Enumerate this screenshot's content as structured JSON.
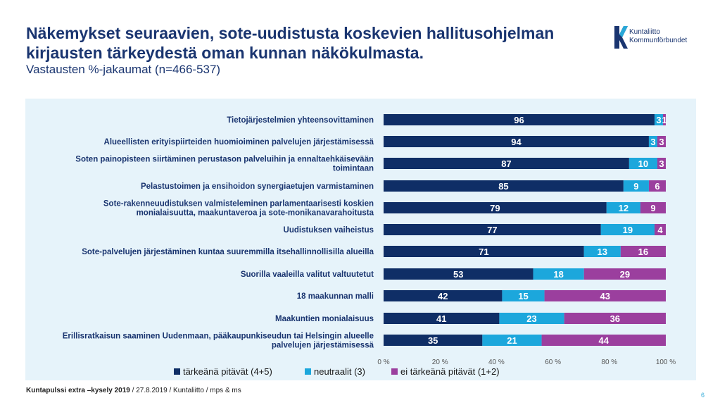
{
  "header": {
    "title": "Näkemykset seuraavien, sote-uudistusta koskevien hallitusohjelman kirjausten tärkeydestä oman kunnan näkökulmasta.",
    "subtitle": "Vastausten %-jakaumat (n=466-537)"
  },
  "logo": {
    "line1": "Kuntaliitto",
    "line2": "Kommunförbundet"
  },
  "footer": {
    "source_bold": "Kuntapulssi extra –kysely 2019",
    "source_rest": " / 27.8.2019 / Kuntaliitto / mps & ms",
    "page": "6"
  },
  "chart_data": {
    "type": "bar",
    "orientation": "horizontal",
    "stacked": true,
    "categories": [
      [
        "Tietojärjestelmien yhteensovittaminen"
      ],
      [
        "Alueellisten erityispiirteiden huomioiminen palvelujen järjestämisessä"
      ],
      [
        "Soten painopisteen siirtäminen perustason palveluihin ja ennaltaehkäisevään",
        "toimintaan"
      ],
      [
        "Pelastustoimen ja ensihoidon synergiaetujen varmistaminen"
      ],
      [
        "Sote-rakenneuudistuksen valmisteleminen parlamentaarisesti koskien",
        "monialaisuutta, maakuntaveroa ja sote-monikanavarahoitusta"
      ],
      [
        "Uudistuksen vaiheistus"
      ],
      [
        "Sote-palvelujen järjestäminen kuntaa suuremmilla itsehallinnollisilla alueilla"
      ],
      [
        "Suorilla vaaleilla valitut valtuutetut"
      ],
      [
        "18 maakunnan malli"
      ],
      [
        "Maakuntien monialaisuus"
      ],
      [
        "Erillisratkaisun saaminen Uudenmaan, pääkaupunkiseudun tai Helsingin alueelle",
        "palvelujen järjestämisessä"
      ]
    ],
    "series": [
      {
        "name": "tärkeänä pitävät (4+5)",
        "color": "#0f2e66",
        "values": [
          96,
          94,
          87,
          85,
          79,
          77,
          71,
          53,
          42,
          41,
          35
        ],
        "labels": [
          "96",
          "94",
          "87",
          "85",
          "79",
          "77",
          "71",
          "53",
          "42",
          "41",
          "35"
        ]
      },
      {
        "name": "neutraalit (3)",
        "color": "#1ca7dc",
        "values": [
          3,
          3,
          10,
          9,
          12,
          19,
          13,
          18,
          15,
          23,
          21
        ],
        "labels": [
          "3",
          "3",
          "10",
          "9",
          "12",
          "19",
          "13",
          "18",
          "15",
          "23",
          "21"
        ]
      },
      {
        "name": "ei tärkeänä pitävät (1+2)",
        "color": "#9b3f9e",
        "values": [
          1,
          3,
          3,
          6,
          9,
          4,
          16,
          29,
          43,
          36,
          44
        ],
        "labels": [
          "1",
          "3",
          "3",
          "6",
          "9",
          "4",
          "16",
          "29",
          "43",
          "36",
          "44"
        ]
      }
    ],
    "xticks": [
      "0 %",
      "20 %",
      "40 %",
      "60 %",
      "80 %",
      "100 %"
    ],
    "xlim": [
      0,
      100
    ],
    "legend": "bottom",
    "grid": false
  }
}
